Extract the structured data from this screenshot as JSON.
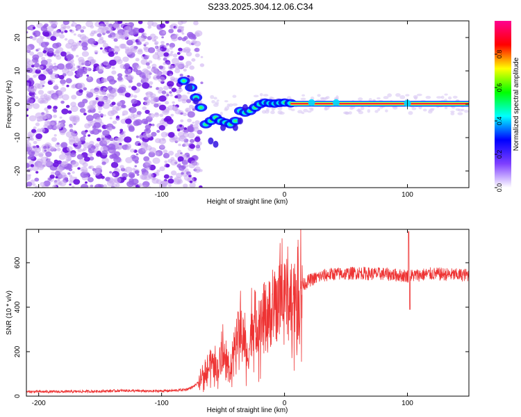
{
  "title": "S233.2025.304.12.06.C34",
  "chart_data": [
    {
      "type": "heatmap",
      "xlabel": "Height of straight line (km)",
      "ylabel": "Frequency (Hz)",
      "xlim": [
        -210,
        150
      ],
      "ylim": [
        -25,
        25
      ],
      "xticks": [
        -200,
        -100,
        0,
        100
      ],
      "xtick_labels": [
        "-200",
        "-100",
        "0",
        "100"
      ],
      "yticks": [
        -20,
        -10,
        0,
        10,
        20
      ],
      "ytick_labels": [
        "-20",
        "-10",
        "0",
        "10",
        "20"
      ],
      "ridge": {
        "x": [
          -82,
          -76,
          -72,
          -68,
          -64,
          -60,
          -56,
          -52,
          -48,
          -44,
          -40,
          -36,
          -32,
          -28,
          -24,
          -20,
          -16,
          -12,
          -8,
          -4,
          0,
          5,
          10,
          20,
          40,
          60,
          80,
          100,
          120,
          150
        ],
        "y": [
          7,
          5,
          2,
          -1,
          -6,
          -5,
          -4,
          -5,
          -5.5,
          -6,
          -5,
          -2,
          -2.5,
          -2,
          -1,
          0,
          0.5,
          0.3,
          0.2,
          0.4,
          0.5,
          0.3,
          0.2,
          0.2,
          0.1,
          0.1,
          0.1,
          0.1,
          0.1,
          0.1
        ]
      }
    },
    {
      "type": "line",
      "xlabel": "Height of straight line (km)",
      "ylabel": "SNR (10 * v/v)",
      "xlim": [
        -210,
        150
      ],
      "ylim": [
        0,
        750
      ],
      "xticks": [
        -200,
        -100,
        0,
        100
      ],
      "xtick_labels": [
        "-200",
        "-100",
        "0",
        "100"
      ],
      "yticks": [
        0,
        200,
        400,
        600
      ],
      "ytick_labels": [
        "0",
        "200",
        "400",
        "600"
      ],
      "color": "#ee3333",
      "series": [
        {
          "name": "SNR",
          "x": [
            -210,
            -180,
            -150,
            -130,
            -110,
            -90,
            -80,
            -75,
            -70,
            -65,
            -60,
            -55,
            -50,
            -45,
            -40,
            -35,
            -30,
            -25,
            -20,
            -15,
            -10,
            -5,
            0,
            5,
            10,
            15,
            20,
            25,
            30,
            40,
            50,
            60,
            70,
            80,
            90,
            100,
            110,
            120,
            130,
            140,
            150
          ],
          "values": [
            20,
            20,
            22,
            25,
            22,
            25,
            30,
            40,
            60,
            90,
            150,
            120,
            200,
            100,
            250,
            300,
            180,
            350,
            300,
            400,
            350,
            420,
            440,
            460,
            480,
            500,
            520,
            530,
            540,
            550,
            550,
            555,
            550,
            550,
            545,
            540,
            545,
            550,
            548,
            545,
            545
          ]
        }
      ],
      "spikes": [
        {
          "x": 101,
          "y": 740
        },
        {
          "x": 102,
          "y": 390
        }
      ]
    }
  ],
  "colorbar": {
    "label": "Normalized spectral amplitude",
    "range": [
      0,
      1
    ],
    "ticks": [
      0.0,
      0.2,
      0.4,
      0.6,
      0.8
    ],
    "tick_labels": [
      "0.0",
      "0.2",
      "0.4",
      "0.6",
      "0.8"
    ],
    "stops": [
      "#ffffff",
      "#7f3fff",
      "#0000ff",
      "#00ffff",
      "#00ff00",
      "#ffff00",
      "#ff0000",
      "#ff0090"
    ]
  }
}
